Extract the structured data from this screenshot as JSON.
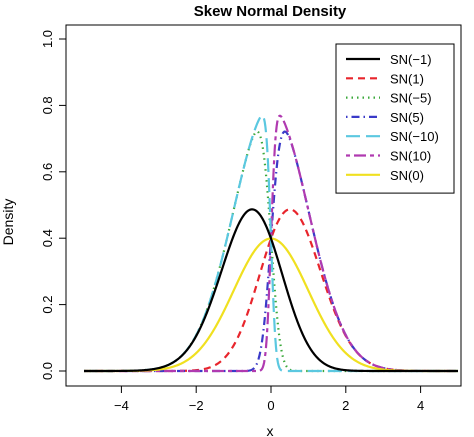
{
  "chart_data": {
    "type": "line",
    "title": "Skew Normal Density",
    "xlabel": "x",
    "ylabel": "Density",
    "xlim": [
      -5,
      5
    ],
    "ylim": [
      0,
      1.0
    ],
    "x_ticks": [
      "−4",
      "−2",
      "0",
      "2",
      "4"
    ],
    "x_tick_values": [
      -4,
      -2,
      0,
      2,
      4
    ],
    "y_ticks": [
      "0.0",
      "0.2",
      "0.4",
      "0.6",
      "0.8",
      "1.0"
    ],
    "y_tick_values": [
      0.0,
      0.2,
      0.4,
      0.6,
      0.8,
      1.0
    ],
    "grid": false,
    "legend_position": "top-right",
    "series": [
      {
        "name": "SN(−1)",
        "alpha": -1,
        "color": "#000000",
        "dash": "solid",
        "peak": 0.48,
        "peak_x": -0.55
      },
      {
        "name": "SN(1)",
        "alpha": 1,
        "color": "#e8252c",
        "dash": "dashed",
        "peak": 0.48,
        "peak_x": 0.55
      },
      {
        "name": "SN(−5)",
        "alpha": -5,
        "color": "#3aa83a",
        "dash": "dotted",
        "peak": 0.76,
        "peak_x": -0.3
      },
      {
        "name": "SN(5)",
        "alpha": 5,
        "color": "#3a3ac8",
        "dash": "dotdash",
        "peak": 0.76,
        "peak_x": 0.3
      },
      {
        "name": "SN(−10)",
        "alpha": -10,
        "color": "#5bc8e0",
        "dash": "longdash",
        "peak": 0.78,
        "peak_x": -0.2
      },
      {
        "name": "SN(10)",
        "alpha": 10,
        "color": "#b03ab0",
        "dash": "twodash",
        "peak": 0.78,
        "peak_x": 0.2
      },
      {
        "name": "SN(0)",
        "alpha": 0,
        "color": "#f0e020",
        "dash": "solid",
        "peak": 0.399,
        "peak_x": 0.0
      }
    ]
  }
}
